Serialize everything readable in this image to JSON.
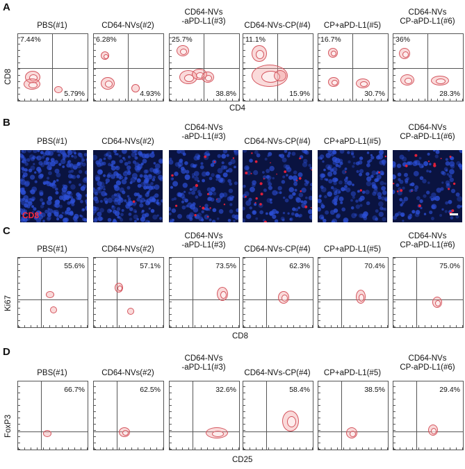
{
  "panels": {
    "A": {
      "letter": "A",
      "xlabel": "CD4",
      "ylabel": "CD8",
      "groups": [
        {
          "title1": "PBS(#1)",
          "title2": "",
          "ul": "7.44%",
          "lr": "5.79%"
        },
        {
          "title1": "CD64-NVs(#2)",
          "title2": "",
          "ul": "6.28%",
          "lr": "4.93%"
        },
        {
          "title1": "CD64-NVs",
          "title2": "-aPD-L1(#3)",
          "ul": "25.7%",
          "lr": "38.8%"
        },
        {
          "title1": "CD64-NVs-CP(#4)",
          "title2": "",
          "ul": "11.1%",
          "lr": "15.9%"
        },
        {
          "title1": "CP+aPD-L1(#5)",
          "title2": "",
          "ul": "16.7%",
          "lr": "30.7%"
        },
        {
          "title1": "CD64-NVs",
          "title2": "CP-aPD-L1(#6)",
          "ul": "36%",
          "lr": "28.3%"
        }
      ]
    },
    "B": {
      "letter": "B",
      "stain_label": "CD8",
      "stain_sup": "+",
      "groups": [
        {
          "title1": "PBS(#1)",
          "title2": ""
        },
        {
          "title1": "CD64-NVs(#2)",
          "title2": ""
        },
        {
          "title1": "CD64-NVs",
          "title2": "-aPD-L1(#3)"
        },
        {
          "title1": "CD64-NVs-CP(#4)",
          "title2": ""
        },
        {
          "title1": "CP+aPD-L1(#5)",
          "title2": ""
        },
        {
          "title1": "CD64-NVs",
          "title2": "CP-aPD-L1(#6)"
        }
      ]
    },
    "C": {
      "letter": "C",
      "xlabel": "CD8",
      "ylabel": "Ki67",
      "groups": [
        {
          "title1": "PBS(#1)",
          "title2": "",
          "ur": "55.6%"
        },
        {
          "title1": "CD64-NVs(#2)",
          "title2": "",
          "ur": "57.1%"
        },
        {
          "title1": "CD64-NVs",
          "title2": "-aPD-L1(#3)",
          "ur": "73.5%"
        },
        {
          "title1": "CD64-NVs-CP(#4)",
          "title2": "",
          "ur": "62.3%"
        },
        {
          "title1": "CP+aPD-L1(#5)",
          "title2": "",
          "ur": "70.4%"
        },
        {
          "title1": "CD64-NVs",
          "title2": "CP-aPD-L1(#6)",
          "ur": "75.0%"
        }
      ]
    },
    "D": {
      "letter": "D",
      "xlabel": "CD25",
      "ylabel": "FoxP3",
      "groups": [
        {
          "title1": "PBS(#1)",
          "title2": "",
          "ur": "66.7%"
        },
        {
          "title1": "CD64-NVs(#2)",
          "title2": "",
          "ur": "62.5%"
        },
        {
          "title1": "CD64-NVs",
          "title2": "-aPD-L1(#3)",
          "ur": "32.6%"
        },
        {
          "title1": "CD64-NVs-CP(#4)",
          "title2": "",
          "ur": "58.4%"
        },
        {
          "title1": "CP+aPD-L1(#5)",
          "title2": "",
          "ur": "38.5%"
        },
        {
          "title1": "CD64-NVs",
          "title2": "CP-aPD-L1(#6)",
          "ur": "29.4%"
        }
      ]
    }
  },
  "colors": {
    "contour": "#d4555e",
    "microscopy_bg": "#0a1340",
    "nuclei": "#2c4fd6",
    "cd8_signal": "#e0203a"
  }
}
